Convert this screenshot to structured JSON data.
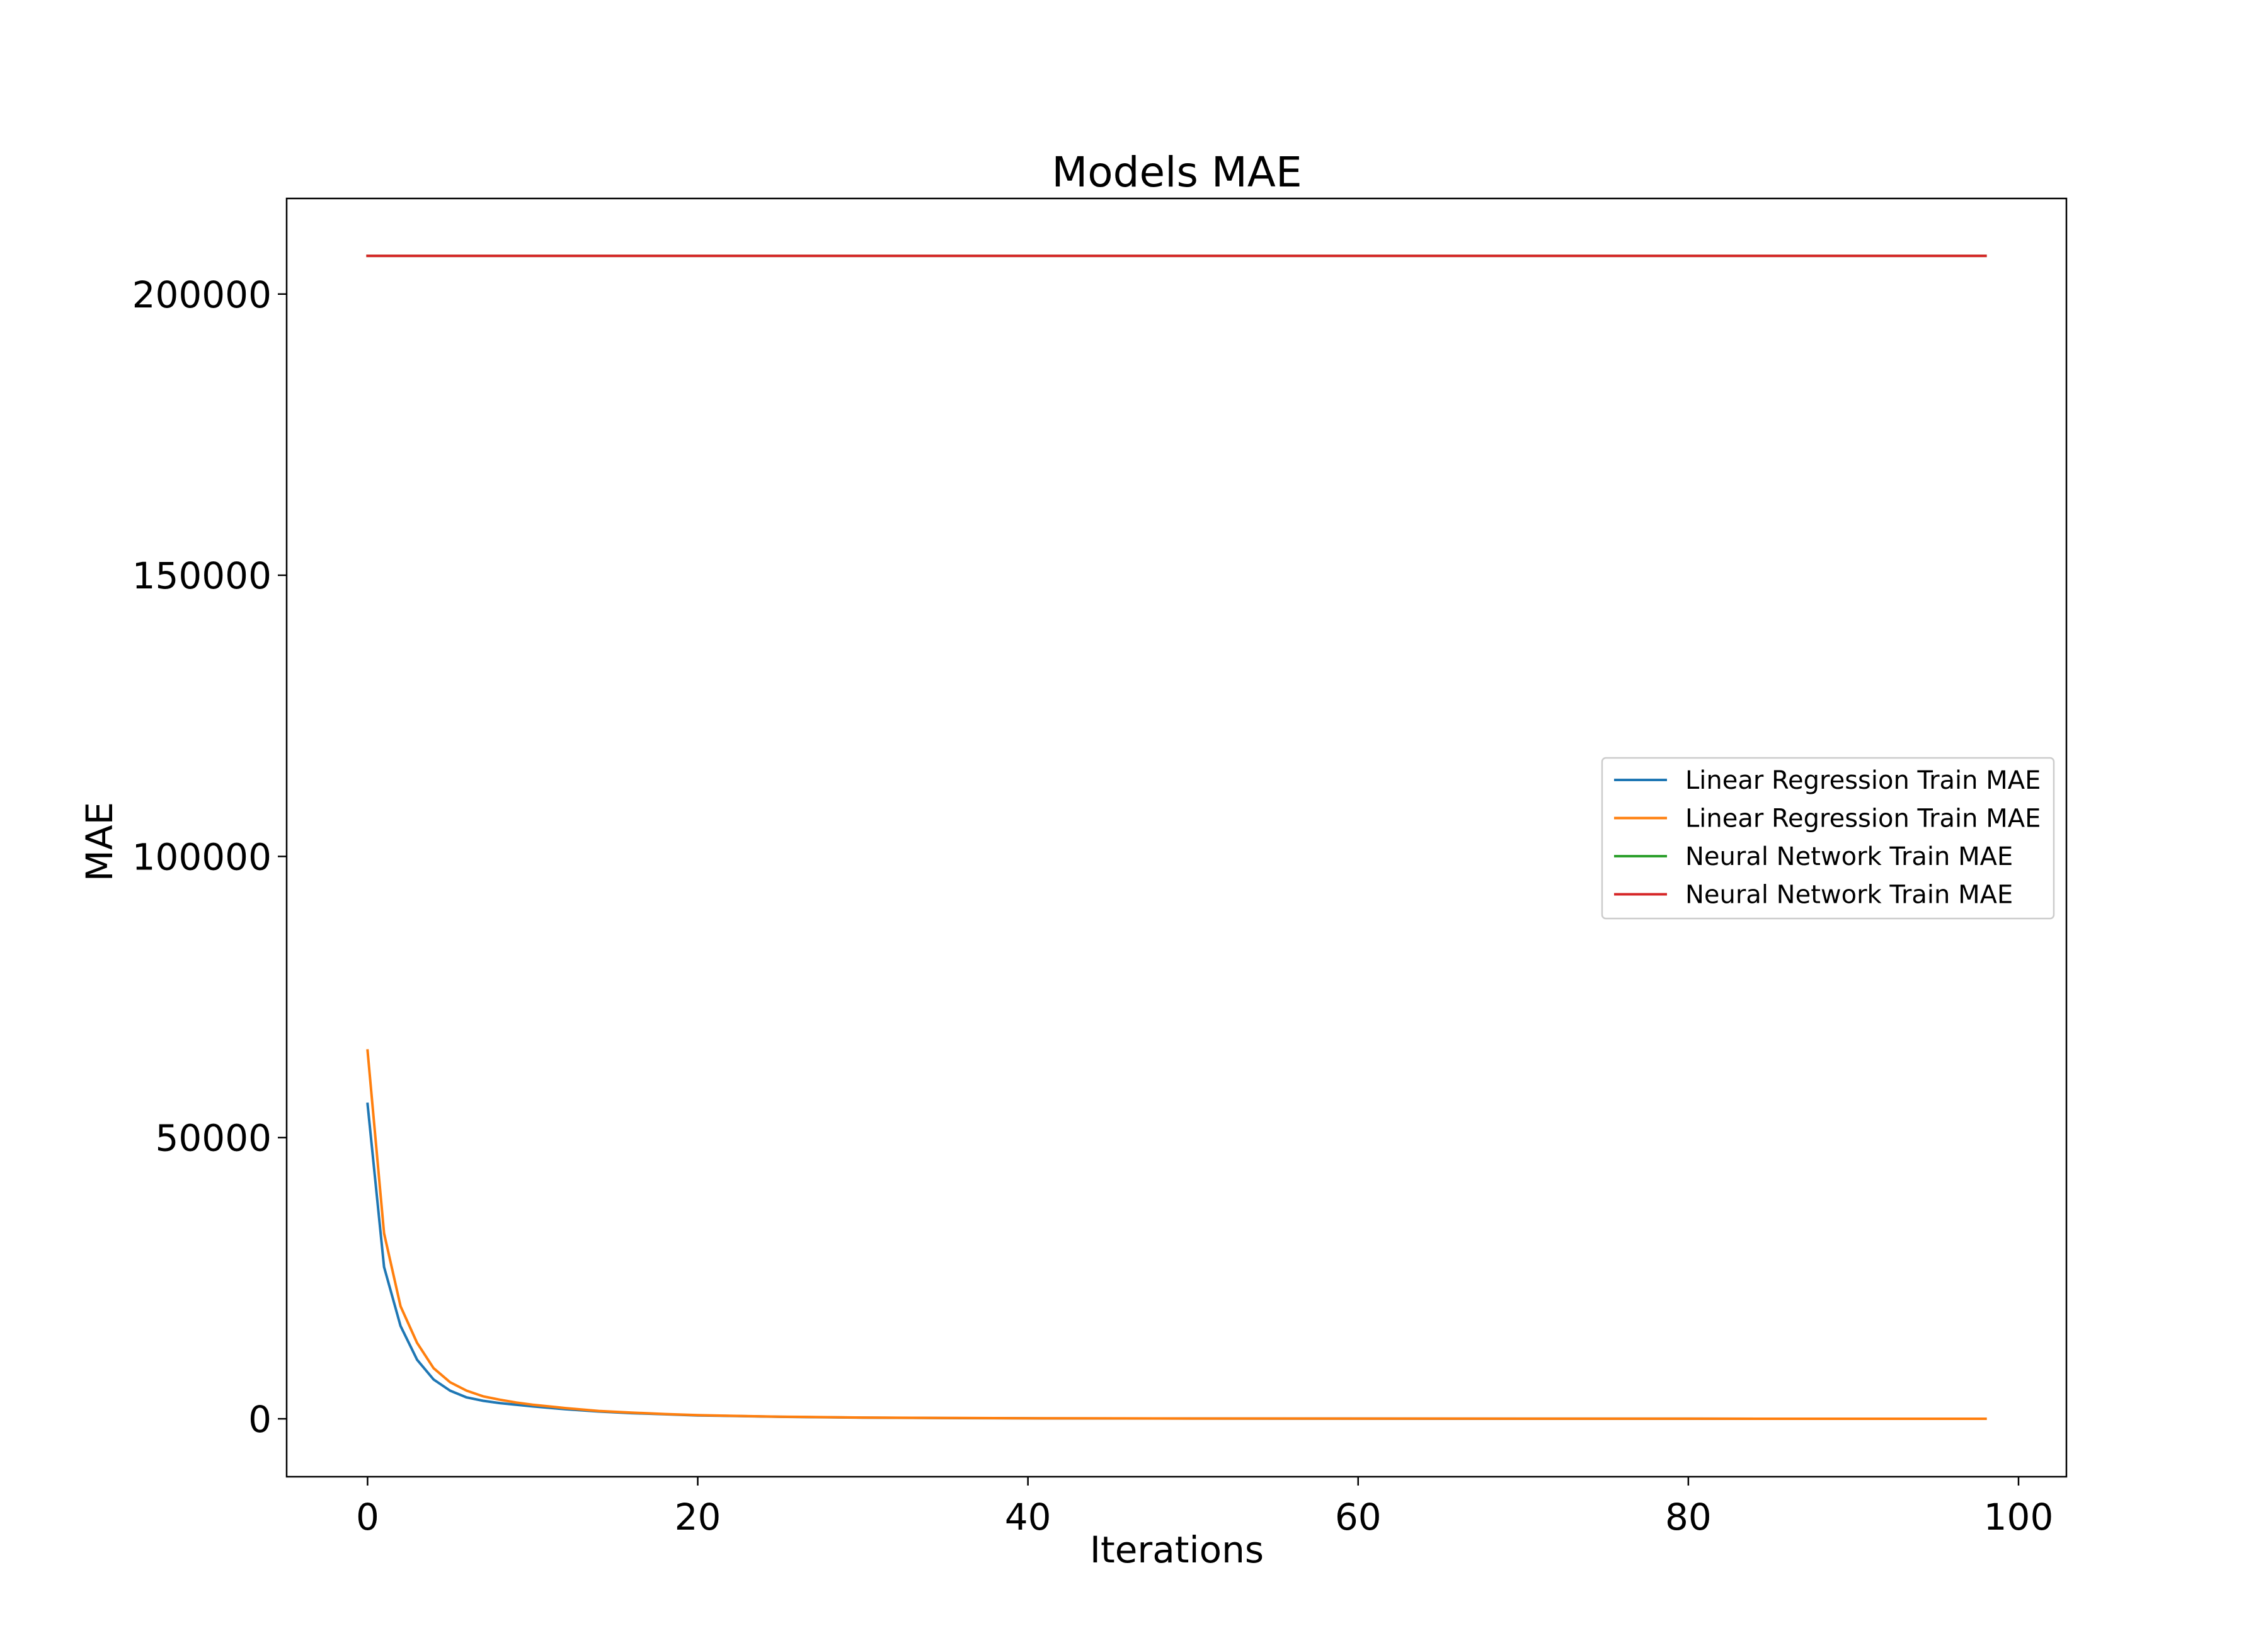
{
  "chart_data": {
    "type": "line",
    "title": "Models MAE",
    "xlabel": "Iterations",
    "ylabel": "MAE",
    "xlim": [
      -4.9,
      102.9
    ],
    "ylim": [
      -10300,
      217000
    ],
    "xticks": [
      0,
      20,
      40,
      60,
      80,
      100
    ],
    "yticks": [
      0,
      50000,
      100000,
      150000,
      200000
    ],
    "grid": false,
    "legend_position": "center-right",
    "x": [
      0,
      1,
      2,
      3,
      4,
      5,
      6,
      7,
      8,
      9,
      10,
      12,
      14,
      16,
      18,
      20,
      25,
      30,
      35,
      40,
      50,
      60,
      70,
      80,
      90,
      98
    ],
    "series": [
      {
        "name": "Linear Regression Train MAE",
        "color": "#1f77b4",
        "values": [
          56000,
          27000,
          16500,
          10500,
          7000,
          5000,
          3800,
          3200,
          2800,
          2500,
          2200,
          1700,
          1300,
          1000,
          800,
          600,
          350,
          200,
          130,
          90,
          50,
          30,
          20,
          15,
          10,
          8
        ]
      },
      {
        "name": "Linear Regression Train MAE",
        "color": "#ff7f0e",
        "values": [
          65500,
          33000,
          20000,
          13500,
          9000,
          6500,
          5000,
          4000,
          3400,
          2900,
          2500,
          1900,
          1400,
          1100,
          850,
          650,
          380,
          220,
          150,
          100,
          55,
          35,
          22,
          16,
          11,
          9
        ]
      },
      {
        "name": "Neural Network Train MAE",
        "color": "#2ca02c",
        "values": [
          206800,
          206800,
          206800,
          206800,
          206800,
          206800,
          206800,
          206800,
          206800,
          206800,
          206800,
          206800,
          206800,
          206800,
          206800,
          206800,
          206800,
          206800,
          206800,
          206800,
          206800,
          206800,
          206800,
          206800,
          206800,
          206800
        ]
      },
      {
        "name": "Neural Network Train MAE",
        "color": "#d62728",
        "values": [
          206800,
          206800,
          206800,
          206800,
          206800,
          206800,
          206800,
          206800,
          206800,
          206800,
          206800,
          206800,
          206800,
          206800,
          206800,
          206800,
          206800,
          206800,
          206800,
          206800,
          206800,
          206800,
          206800,
          206800,
          206800,
          206800
        ]
      }
    ]
  }
}
